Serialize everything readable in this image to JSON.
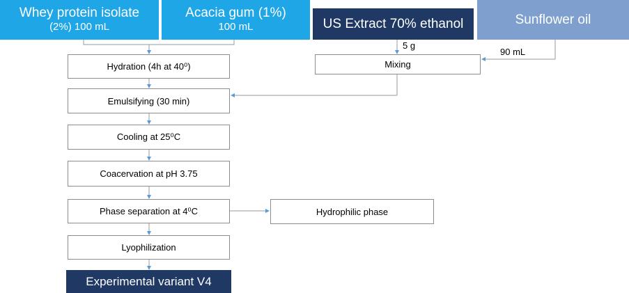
{
  "inputs": [
    {
      "lines": [
        "Whey protein isolate",
        "(2%) 100 mL"
      ]
    },
    {
      "lines": [
        "Acacia gum (1%)",
        "100 mL"
      ]
    },
    {
      "lines": [
        "US Extract 70% ethanol"
      ]
    },
    {
      "lines": [
        "Sunflower oil"
      ]
    }
  ],
  "edge_labels": [
    "5 g",
    "90 mL"
  ],
  "nodes": [
    {
      "label": "Hydration (4h  at  40⁰)"
    },
    {
      "label": "Emulsifying (30 min)"
    },
    {
      "label": "Cooling at 25⁰C"
    },
    {
      "label": "Coacervation at pH 3.75"
    },
    {
      "label": "Phase separation at 4⁰C"
    },
    {
      "label": "Lyophilization"
    },
    {
      "label": "Mixing"
    },
    {
      "label": "Hydrophilic phase"
    }
  ],
  "output": {
    "label": "Experimental variant V4"
  }
}
